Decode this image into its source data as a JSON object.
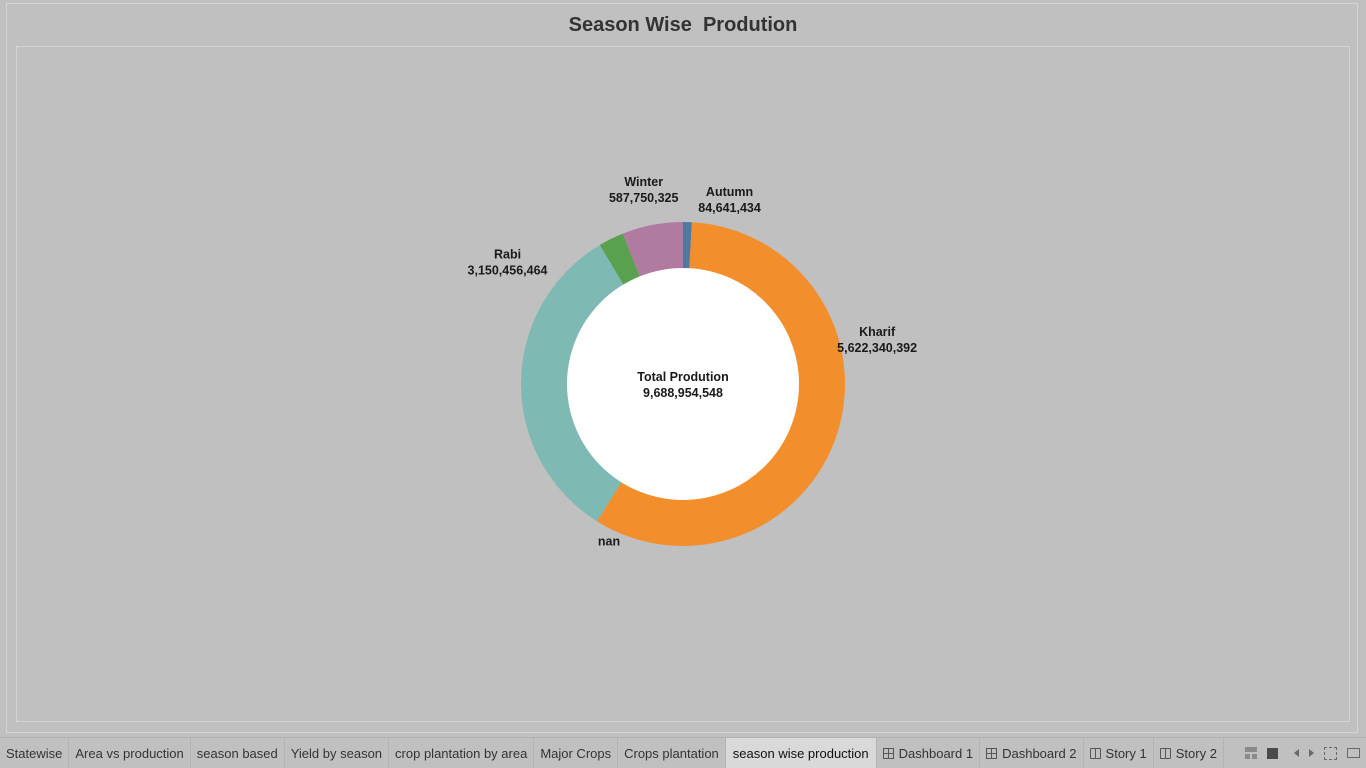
{
  "sheet": {
    "title": "Season Wise  Prodution"
  },
  "chart_data": {
    "type": "pie",
    "donut": true,
    "title": "Season Wise  Prodution",
    "center_label": "Total Prodution",
    "center_value": "9,688,954,548",
    "total": 9688954548,
    "slices": [
      {
        "name": "Autumn",
        "value": 84641434,
        "value_label": "84,641,434",
        "color": "#4e79a7"
      },
      {
        "name": "Kharif",
        "value": 5622340392,
        "value_label": "5,622,340,392",
        "color": "#f28e2b"
      },
      {
        "name": "nan",
        "value": 0,
        "value_label": "",
        "color": "#f28e2b"
      },
      {
        "name": "Rabi",
        "value": 3150456464,
        "value_label": "3,150,456,464",
        "color": "#7fb9b4"
      },
      {
        "name": "",
        "value": 243800000,
        "value_label": "",
        "color": "#59a14f"
      },
      {
        "name": "Winter",
        "value": 587750325,
        "value_label": "587,750,325",
        "color": "#b07aa1"
      }
    ],
    "legend": "none"
  },
  "tabs": [
    {
      "label": "Statewise",
      "icon": "",
      "active": false
    },
    {
      "label": "Area vs production",
      "icon": "",
      "active": false
    },
    {
      "label": "season based",
      "icon": "",
      "active": false
    },
    {
      "label": "Yield by season",
      "icon": "",
      "active": false
    },
    {
      "label": "crop plantation by area",
      "icon": "",
      "active": false
    },
    {
      "label": "Major Crops",
      "icon": "",
      "active": false
    },
    {
      "label": "Crops plantation",
      "icon": "",
      "active": false
    },
    {
      "label": "season wise production",
      "icon": "",
      "active": true
    },
    {
      "label": "Dashboard 1",
      "icon": "dashboard-icon",
      "active": false
    },
    {
      "label": "Dashboard 2",
      "icon": "dashboard-icon",
      "active": false
    },
    {
      "label": "Story 1",
      "icon": "story-icon",
      "active": false
    },
    {
      "label": "Story 2",
      "icon": "story-icon",
      "active": false
    }
  ],
  "controls": [
    "grid-view-icon",
    "filmstrip-view-icon",
    "prev-sheet-icon",
    "next-sheet-icon",
    "fullscreen-icon",
    "presentation-mode-icon"
  ]
}
